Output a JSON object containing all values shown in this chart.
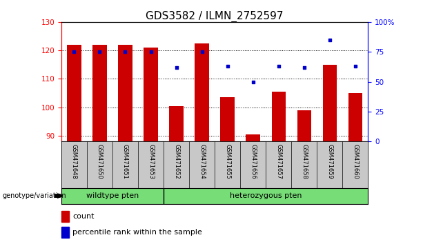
{
  "title": "GDS3582 / ILMN_2752597",
  "samples": [
    "GSM471648",
    "GSM471650",
    "GSM471651",
    "GSM471653",
    "GSM471652",
    "GSM471654",
    "GSM471655",
    "GSM471656",
    "GSM471657",
    "GSM471658",
    "GSM471659",
    "GSM471660"
  ],
  "counts": [
    122,
    122,
    122,
    121,
    100.5,
    122.5,
    103.5,
    90.5,
    105.5,
    99,
    115,
    105
  ],
  "percentile_ranks": [
    75,
    75,
    75,
    75,
    62,
    75,
    63,
    50,
    63,
    62,
    85,
    63
  ],
  "wildtype_count": 4,
  "heterozygous_count": 8,
  "wildtype_label": "wildtype pten",
  "heterozygous_label": "heterozygous pten",
  "genotype_label": "genotype/variation",
  "legend_count": "count",
  "legend_percentile": "percentile rank within the sample",
  "ylim_left": [
    88,
    130
  ],
  "ylim_right": [
    0,
    100
  ],
  "yticks_left": [
    90,
    100,
    110,
    120,
    130
  ],
  "yticks_right": [
    0,
    25,
    50,
    75,
    100
  ],
  "bar_color": "#cc0000",
  "dot_color": "#0000cc",
  "bar_width": 0.55,
  "bg_xtick": "#c8c8c8",
  "bg_group": "#77dd77",
  "title_fontsize": 11,
  "tick_fontsize": 7.5,
  "sample_fontsize": 6,
  "group_fontsize": 8
}
